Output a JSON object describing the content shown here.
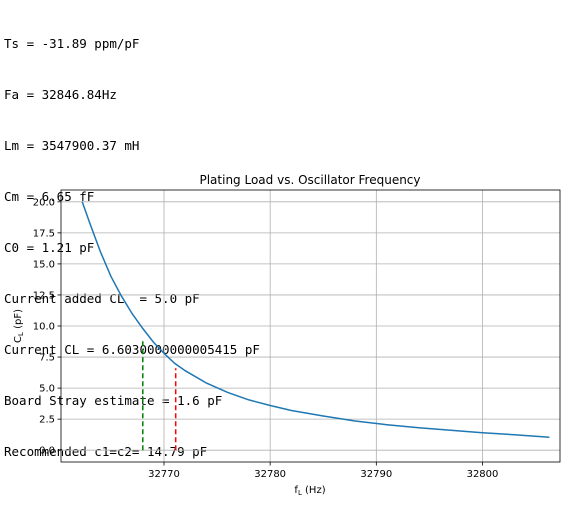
{
  "console_lines": [
    "Ts = -31.89 ppm/pF",
    "Fa = 32846.84Hz",
    "Lm = 3547900.37 mH",
    "Cm = 6.65 fF",
    "C0 = 1.21 pF",
    "Current added CL  = 5.0 pF",
    "Current CL = 6.6030000000005415 pF",
    "Board Stray estimate = 1.6 pF",
    "Recommended c1=c2= 14.79 pF"
  ],
  "chart_data": {
    "type": "line",
    "title": "Plating Load vs. Oscillator Frequency",
    "xlabel": "f_L (Hz)",
    "ylabel": "C_L (pF)",
    "xlim": [
      32760.3,
      32807.3
    ],
    "ylim": [
      -0.95,
      20.95
    ],
    "xticks": [
      32770,
      32780,
      32790,
      32800
    ],
    "yticks": [
      0.0,
      2.5,
      5.0,
      7.5,
      10.0,
      12.5,
      15.0,
      17.5,
      20.0
    ],
    "grid": true,
    "series": [
      {
        "color": "#1f77b4",
        "style": "solid",
        "x": [
          32762.3,
          32763,
          32764,
          32765,
          32766,
          32767,
          32768,
          32769,
          32770,
          32771,
          32772,
          32774,
          32776,
          32778,
          32780,
          32782,
          32785,
          32788,
          32791,
          32794,
          32797,
          32800,
          32803,
          32806.3
        ],
        "y": [
          20.0,
          18.3,
          16.0,
          14.0,
          12.4,
          11.0,
          9.8,
          8.7,
          7.8,
          7.0,
          6.4,
          5.4,
          4.65,
          4.05,
          3.6,
          3.2,
          2.75,
          2.35,
          2.05,
          1.8,
          1.6,
          1.4,
          1.25,
          1.05
        ]
      },
      {
        "color": "#008000",
        "style": "dashed",
        "x": [
          32768.0,
          32768.0
        ],
        "y": [
          0,
          8.9
        ]
      },
      {
        "color": "#ff0000",
        "style": "dashed",
        "x": [
          32771.1,
          32771.1
        ],
        "y": [
          0,
          6.6
        ]
      }
    ]
  }
}
